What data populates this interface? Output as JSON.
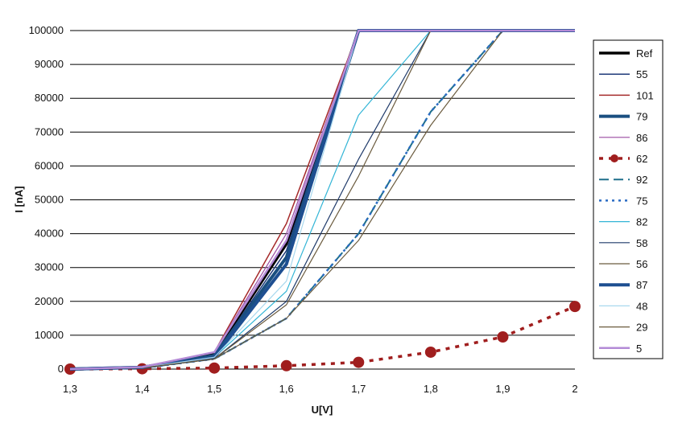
{
  "chart_data": {
    "type": "line",
    "title": "",
    "xlabel": "U[V]",
    "ylabel": "I [nA]",
    "x": [
      1.3,
      1.4,
      1.5,
      1.6,
      1.7,
      1.8,
      1.9,
      2.0
    ],
    "x_tick_labels": [
      "1,3",
      "1,4",
      "1,5",
      "1,6",
      "1,7",
      "1,8",
      "1,9",
      "2"
    ],
    "y_ticks": [
      0,
      10000,
      20000,
      30000,
      40000,
      50000,
      60000,
      70000,
      80000,
      90000,
      100000
    ],
    "xlim": [
      1.3,
      2.0
    ],
    "ylim": [
      0,
      100000
    ],
    "grid": "horizontal",
    "legend_position": "right",
    "series": [
      {
        "name": "Ref",
        "color": "#000000",
        "style": "solid",
        "width": 3.5,
        "values": [
          0,
          500,
          4500,
          37000,
          100000,
          100000,
          100000,
          100000
        ]
      },
      {
        "name": "55",
        "color": "#1f3a7a",
        "style": "solid",
        "width": 1.5,
        "values": [
          0,
          500,
          4000,
          35000,
          100000,
          100000,
          100000,
          100000
        ]
      },
      {
        "name": "101",
        "color": "#a52a2a",
        "style": "solid",
        "width": 1.5,
        "values": [
          0,
          700,
          5000,
          43000,
          100000,
          100000,
          100000,
          100000
        ]
      },
      {
        "name": "79",
        "color": "#1a4f80",
        "style": "solid",
        "width": 4,
        "values": [
          0,
          500,
          4000,
          33000,
          100000,
          100000,
          100000,
          100000
        ]
      },
      {
        "name": "86",
        "color": "#9a4aa0",
        "style": "solid",
        "width": 1.2,
        "values": [
          0,
          600,
          5000,
          40000,
          100000,
          100000,
          100000,
          100000
        ]
      },
      {
        "name": "62",
        "color": "#a01e1e",
        "style": "dotted-markers",
        "width": 3.5,
        "values": [
          0,
          100,
          300,
          1000,
          2000,
          5000,
          9500,
          18500
        ]
      },
      {
        "name": "92",
        "color": "#1f6f8b",
        "style": "dashed",
        "width": 2,
        "values": [
          0,
          300,
          3000,
          15000,
          40000,
          76000,
          100000,
          100000
        ]
      },
      {
        "name": "75",
        "color": "#2b6cc4",
        "style": "dotted",
        "width": 2.5,
        "values": [
          0,
          300,
          3000,
          15000,
          40000,
          76000,
          100000,
          100000
        ]
      },
      {
        "name": "82",
        "color": "#33b5d6",
        "style": "solid",
        "width": 1.2,
        "values": [
          0,
          400,
          3500,
          23000,
          75000,
          100000,
          100000,
          100000
        ]
      },
      {
        "name": "58",
        "color": "#1f3a6a",
        "style": "solid",
        "width": 1.2,
        "values": [
          0,
          350,
          3000,
          20000,
          62000,
          100000,
          100000,
          100000
        ]
      },
      {
        "name": "56",
        "color": "#6b5b3e",
        "style": "solid",
        "width": 1.2,
        "values": [
          0,
          300,
          3000,
          15000,
          38000,
          72000,
          100000,
          100000
        ]
      },
      {
        "name": "87",
        "color": "#1e4f91",
        "style": "solid",
        "width": 4,
        "values": [
          0,
          500,
          3500,
          31000,
          100000,
          100000,
          100000,
          100000
        ]
      },
      {
        "name": "48",
        "color": "#a8d8ee",
        "style": "solid",
        "width": 1.2,
        "values": [
          0,
          400,
          3500,
          26000,
          100000,
          100000,
          100000,
          100000
        ]
      },
      {
        "name": "29",
        "color": "#6b5b3e",
        "style": "solid",
        "width": 1.2,
        "values": [
          0,
          350,
          3000,
          19000,
          57000,
          100000,
          100000,
          100000
        ]
      },
      {
        "name": "5",
        "color": "#b38ad6",
        "style": "solid",
        "width": 2.5,
        "values": [
          0,
          600,
          5000,
          38000,
          100000,
          100000,
          100000,
          100000
        ]
      }
    ]
  }
}
